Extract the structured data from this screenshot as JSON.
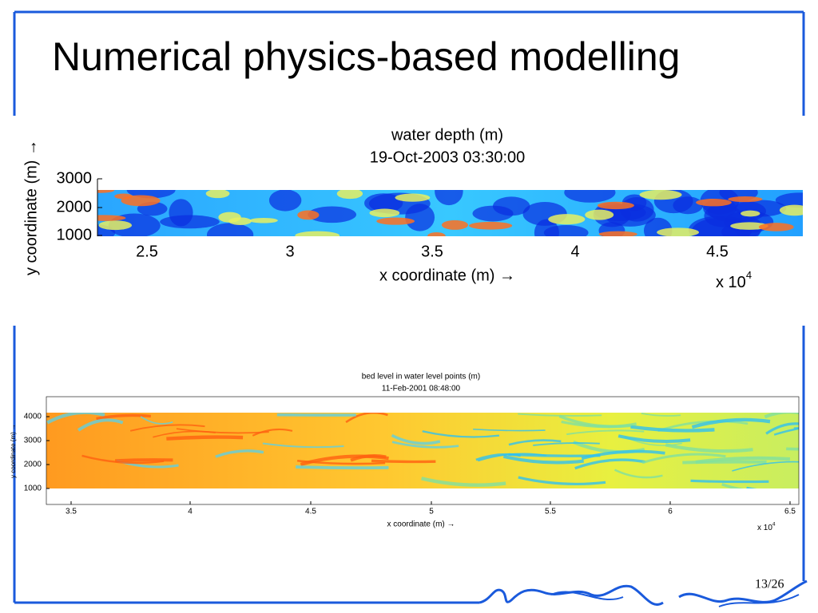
{
  "title": "Numerical physics-based modelling",
  "figures": [
    {
      "title_lines": [
        "water depth (m)",
        "19-Oct-2003 03:30:00"
      ],
      "y_label": "y coordinate (m) →",
      "x_label": "x coordinate (m) →",
      "y_ticks": [
        "3000",
        "2000",
        "1000"
      ],
      "x_ticks": [
        "2.5",
        "3",
        "3.5",
        "4",
        "4.5"
      ],
      "x_multiplier": {
        "base": "x 10",
        "exponent": "4"
      }
    },
    {
      "title_lines": [
        "bed level in water level points (m)",
        "11-Feb-2001 08:48:00"
      ],
      "y_label": "y coordinate (m) →",
      "x_label": "x coordinate (m) →",
      "y_ticks": [
        "4000",
        "3000",
        "2000",
        "1000"
      ],
      "x_ticks": [
        "3.5",
        "4",
        "4.5",
        "5",
        "5.5",
        "6",
        "6.5"
      ],
      "x_multiplier": {
        "base": "x 10",
        "exponent": "4"
      }
    }
  ],
  "page_number": "13/26"
}
